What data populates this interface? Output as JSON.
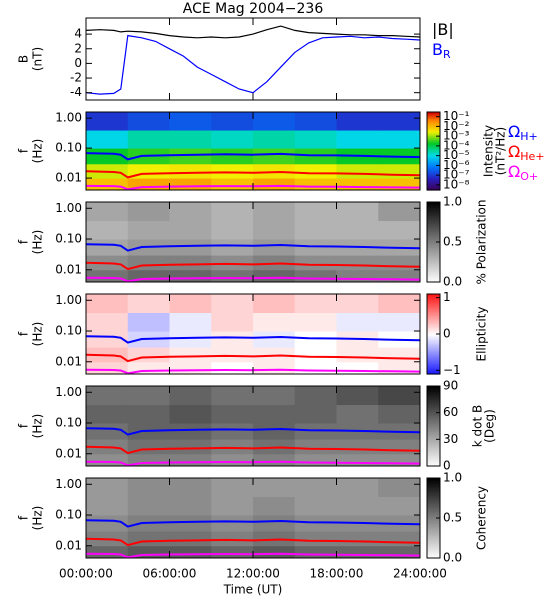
{
  "chart_data": [
    {
      "type": "line",
      "title": "ACE Mag 2004−236",
      "ylabel": "B",
      "yunit": "(nT)",
      "xlim": [
        0,
        24
      ],
      "ylim": [
        -5,
        6.2
      ],
      "yticks": [
        -4,
        -2,
        0,
        2,
        4
      ],
      "legend": true,
      "x": [
        0,
        1,
        2,
        2.5,
        3,
        4,
        5,
        6,
        7,
        8,
        9,
        10,
        11,
        12,
        13,
        14,
        15,
        16,
        17,
        18,
        19,
        20,
        21,
        22,
        23,
        24
      ],
      "series": [
        {
          "name": "|B|",
          "color": "#000000",
          "values": [
            4.5,
            4.6,
            4.5,
            4.3,
            4.4,
            4.3,
            4.1,
            3.8,
            3.6,
            3.5,
            3.6,
            3.5,
            3.6,
            4.0,
            4.6,
            5.1,
            4.5,
            4.2,
            4.1,
            4.0,
            3.9,
            3.9,
            3.8,
            3.8,
            3.7,
            3.6
          ]
        },
        {
          "name": "B",
          "subscript": "R",
          "color": "#0000ff",
          "values": [
            -4.0,
            -4.2,
            -4.1,
            -3.5,
            3.8,
            3.5,
            3.0,
            2.0,
            1.0,
            -0.5,
            -1.5,
            -2.5,
            -3.5,
            -4.0,
            -2.5,
            -0.5,
            1.5,
            2.8,
            3.5,
            3.6,
            3.7,
            3.5,
            3.6,
            3.4,
            3.3,
            3.2
          ]
        }
      ]
    },
    {
      "type": "spectrogram",
      "ylabel": "f",
      "yunit": "(Hz)",
      "ylog": true,
      "xlim": [
        0,
        24
      ],
      "ylim": [
        0.004,
        1.6
      ],
      "yticks": [
        {
          "value": 1,
          "label": "1.00"
        },
        {
          "value": 0.1,
          "label": "0.10"
        },
        {
          "value": 0.01,
          "label": "0.01"
        }
      ],
      "zlabel": "Intensity",
      "zunit": "(nT²/Hz)",
      "zlog": true,
      "colormap": "rainbow",
      "zlim": [
        3e-09,
        0.3
      ],
      "zticks": [
        {
          "value": 0.1,
          "label": "10⁻¹"
        },
        {
          "value": 0.01,
          "label": "10⁻²"
        },
        {
          "value": 0.001,
          "label": "10⁻³"
        },
        {
          "value": 0.0001,
          "label": "10⁻⁴"
        },
        {
          "value": 1e-05,
          "label": "10⁻⁵"
        },
        {
          "value": 1e-06,
          "label": "10⁻⁶"
        },
        {
          "value": 1e-07,
          "label": "10⁻⁷"
        },
        {
          "value": 1e-08,
          "label": "10⁻⁸"
        }
      ],
      "tbins": [
        0,
        3,
        6,
        9,
        12,
        15,
        18,
        21,
        24
      ],
      "fbins": [
        0.004,
        0.01,
        0.03,
        0.1,
        0.4,
        1.6
      ],
      "z": [
        [
          0.01,
          0.02,
          0.02,
          0.01,
          0.02,
          0.01,
          0.01,
          0.01
        ],
        [
          0.002,
          0.003,
          0.004,
          0.003,
          0.004,
          0.003,
          0.002,
          0.002
        ],
        [
          0.0002,
          0.0003,
          0.0004,
          0.0003,
          0.0004,
          0.0003,
          0.0002,
          0.0002
        ],
        [
          1e-05,
          3e-05,
          3e-05,
          2e-05,
          3e-05,
          2e-05,
          1e-05,
          1e-05
        ],
        [
          1e-07,
          2e-07,
          3e-07,
          2e-07,
          3e-07,
          2e-07,
          1e-07,
          1e-07
        ]
      ],
      "legend": true,
      "x": [
        0,
        2,
        2.5,
        3,
        4,
        6,
        8,
        10,
        12,
        14,
        16,
        18,
        20,
        22,
        24
      ],
      "series": [
        {
          "name": "Ω",
          "subscript": "H+",
          "color": "#0000ff",
          "values": [
            0.068,
            0.065,
            0.06,
            0.042,
            0.055,
            0.058,
            0.06,
            0.062,
            0.06,
            0.064,
            0.058,
            0.057,
            0.055,
            0.052,
            0.05
          ]
        },
        {
          "name": "Ω",
          "subscript": "He+",
          "color": "#ff0000",
          "values": [
            0.017,
            0.016,
            0.015,
            0.0105,
            0.0138,
            0.0145,
            0.015,
            0.0155,
            0.015,
            0.016,
            0.0145,
            0.0143,
            0.0138,
            0.013,
            0.0125
          ]
        },
        {
          "name": "Ω",
          "subscript": "O+",
          "color": "#ff00ff",
          "values": [
            0.0055,
            0.0054,
            0.0052,
            0.0042,
            0.005,
            0.0052,
            0.0053,
            0.0054,
            0.0053,
            0.0055,
            0.0052,
            0.0051,
            0.005,
            0.0049,
            0.0048
          ]
        }
      ]
    },
    {
      "type": "spectrogram",
      "ylabel": "f",
      "yunit": "(Hz)",
      "ylog": true,
      "xlim": [
        0,
        24
      ],
      "ylim": [
        0.004,
        1.6
      ],
      "yticks": [
        {
          "value": 1,
          "label": "1.00"
        },
        {
          "value": 0.1,
          "label": "0.10"
        },
        {
          "value": 0.01,
          "label": "0.01"
        }
      ],
      "zlabel": "% Polarization",
      "colormap": "gray_r",
      "zlim": [
        0,
        1
      ],
      "zticks": [
        {
          "value": 0,
          "label": "0.0"
        },
        0.5,
        {
          "value": 1,
          "label": "1.0"
        }
      ],
      "tbins": [
        0,
        3,
        6,
        9,
        12,
        15,
        18,
        21,
        24
      ],
      "fbins": [
        0.004,
        0.01,
        0.03,
        0.1,
        0.4,
        1.6
      ],
      "z": [
        [
          0.55,
          0.6,
          0.6,
          0.55,
          0.6,
          0.55,
          0.5,
          0.5
        ],
        [
          0.45,
          0.5,
          0.5,
          0.45,
          0.5,
          0.45,
          0.45,
          0.45
        ],
        [
          0.35,
          0.4,
          0.4,
          0.35,
          0.4,
          0.35,
          0.35,
          0.35
        ],
        [
          0.3,
          0.35,
          0.35,
          0.3,
          0.35,
          0.3,
          0.3,
          0.3
        ],
        [
          0.35,
          0.4,
          0.35,
          0.3,
          0.35,
          0.3,
          0.3,
          0.4
        ]
      ],
      "x": [
        0,
        2,
        2.5,
        3,
        4,
        6,
        8,
        10,
        12,
        14,
        16,
        18,
        20,
        22,
        24
      ],
      "series": [
        {
          "color": "#0000ff",
          "values": [
            0.068,
            0.065,
            0.06,
            0.042,
            0.055,
            0.058,
            0.06,
            0.062,
            0.06,
            0.064,
            0.058,
            0.057,
            0.055,
            0.052,
            0.05
          ]
        },
        {
          "color": "#ff0000",
          "values": [
            0.017,
            0.016,
            0.015,
            0.0105,
            0.0138,
            0.0145,
            0.015,
            0.0155,
            0.015,
            0.016,
            0.0145,
            0.0143,
            0.0138,
            0.013,
            0.0125
          ]
        },
        {
          "color": "#ff00ff",
          "values": [
            0.0055,
            0.0054,
            0.0052,
            0.0042,
            0.005,
            0.0052,
            0.0053,
            0.0054,
            0.0053,
            0.0055,
            0.0052,
            0.0051,
            0.005,
            0.0049,
            0.0048
          ]
        }
      ]
    },
    {
      "type": "spectrogram",
      "ylabel": "f",
      "yunit": "(Hz)",
      "ylog": true,
      "xlim": [
        0,
        24
      ],
      "ylim": [
        0.004,
        1.6
      ],
      "yticks": [
        {
          "value": 1,
          "label": "1.00"
        },
        {
          "value": 0.1,
          "label": "0.10"
        },
        {
          "value": 0.01,
          "label": "0.01"
        }
      ],
      "zlabel": "Ellipticity",
      "colormap": "bwr",
      "zlim": [
        -1.1,
        1.1
      ],
      "zticks": [
        {
          "value": -1,
          "label": "−1"
        },
        0,
        1
      ],
      "tbins": [
        0,
        3,
        6,
        9,
        12,
        15,
        18,
        21,
        24
      ],
      "fbins": [
        0.004,
        0.01,
        0.03,
        0.1,
        0.4,
        1.6
      ],
      "z": [
        [
          0.2,
          0.1,
          0.1,
          0.0,
          0.1,
          0.0,
          0.0,
          0.1
        ],
        [
          0.3,
          0.2,
          0.1,
          0.1,
          0.1,
          0.0,
          0.1,
          0.1
        ],
        [
          0.2,
          -0.2,
          -0.1,
          0.1,
          -0.1,
          0.0,
          0.1,
          0.0
        ],
        [
          0.2,
          -0.3,
          -0.1,
          0.2,
          0.1,
          0.1,
          -0.1,
          -0.1
        ],
        [
          0.3,
          0.2,
          0.3,
          0.2,
          0.3,
          0.2,
          0.2,
          0.3
        ]
      ],
      "x": [
        0,
        2,
        2.5,
        3,
        4,
        6,
        8,
        10,
        12,
        14,
        16,
        18,
        20,
        22,
        24
      ],
      "series": [
        {
          "color": "#0000ff",
          "values": [
            0.068,
            0.065,
            0.06,
            0.042,
            0.055,
            0.058,
            0.06,
            0.062,
            0.06,
            0.064,
            0.058,
            0.057,
            0.055,
            0.052,
            0.05
          ]
        },
        {
          "color": "#ff0000",
          "values": [
            0.017,
            0.016,
            0.015,
            0.0105,
            0.0138,
            0.0145,
            0.015,
            0.0155,
            0.015,
            0.016,
            0.0145,
            0.0143,
            0.0138,
            0.013,
            0.0125
          ]
        },
        {
          "color": "#ff00ff",
          "values": [
            0.0055,
            0.0054,
            0.0052,
            0.0042,
            0.005,
            0.0052,
            0.0053,
            0.0054,
            0.0053,
            0.0055,
            0.0052,
            0.0051,
            0.005,
            0.0049,
            0.0048
          ]
        }
      ]
    },
    {
      "type": "spectrogram",
      "ylabel": "f",
      "yunit": "(Hz)",
      "ylog": true,
      "xlim": [
        0,
        24
      ],
      "ylim": [
        0.004,
        1.6
      ],
      "yticks": [
        {
          "value": 1,
          "label": "1.00"
        },
        {
          "value": 0.1,
          "label": "0.10"
        },
        {
          "value": 0.01,
          "label": "0.01"
        }
      ],
      "zlabel": "k dot B",
      "zunit": "(Deg)",
      "colormap": "gray_r",
      "zlim": [
        0,
        90
      ],
      "zticks": [
        0,
        30,
        60,
        90
      ],
      "tbins": [
        0,
        3,
        6,
        9,
        12,
        15,
        18,
        21,
        24
      ],
      "fbins": [
        0.004,
        0.01,
        0.03,
        0.1,
        0.4,
        1.6
      ],
      "z": [
        [
          40,
          45,
          45,
          40,
          45,
          40,
          40,
          40
        ],
        [
          45,
          50,
          50,
          45,
          50,
          45,
          45,
          45
        ],
        [
          50,
          55,
          55,
          50,
          55,
          50,
          50,
          50
        ],
        [
          55,
          55,
          60,
          55,
          55,
          55,
          50,
          55
        ],
        [
          50,
          50,
          55,
          50,
          50,
          55,
          60,
          65
        ]
      ],
      "x": [
        0,
        2,
        2.5,
        3,
        4,
        6,
        8,
        10,
        12,
        14,
        16,
        18,
        20,
        22,
        24
      ],
      "series": [
        {
          "color": "#0000ff",
          "values": [
            0.068,
            0.065,
            0.06,
            0.042,
            0.055,
            0.058,
            0.06,
            0.062,
            0.06,
            0.064,
            0.058,
            0.057,
            0.055,
            0.052,
            0.05
          ]
        },
        {
          "color": "#ff0000",
          "values": [
            0.017,
            0.016,
            0.015,
            0.0105,
            0.0138,
            0.0145,
            0.015,
            0.0155,
            0.015,
            0.016,
            0.0145,
            0.0143,
            0.0138,
            0.013,
            0.0125
          ]
        },
        {
          "color": "#ff00ff",
          "values": [
            0.0055,
            0.0054,
            0.0052,
            0.0042,
            0.005,
            0.0052,
            0.0053,
            0.0054,
            0.0053,
            0.0055,
            0.0052,
            0.0051,
            0.005,
            0.0049,
            0.0048
          ]
        }
      ]
    },
    {
      "type": "spectrogram",
      "ylabel": "f",
      "yunit": "(Hz)",
      "ylog": true,
      "xlim": [
        0,
        24
      ],
      "ylim": [
        0.004,
        1.6
      ],
      "yticks": [
        {
          "value": 1,
          "label": "1.00"
        },
        {
          "value": 0.1,
          "label": "0.10"
        },
        {
          "value": 0.01,
          "label": "0.01"
        }
      ],
      "zlabel": "Coherency",
      "colormap": "gray_r",
      "zlim": [
        0,
        1
      ],
      "zticks": [
        {
          "value": 0,
          "label": "0.0"
        },
        0.5,
        {
          "value": 1,
          "label": "1.0"
        }
      ],
      "tbins": [
        0,
        3,
        6,
        9,
        12,
        15,
        18,
        21,
        24
      ],
      "fbins": [
        0.004,
        0.01,
        0.03,
        0.1,
        0.4,
        1.6
      ],
      "z": [
        [
          0.6,
          0.65,
          0.65,
          0.6,
          0.65,
          0.6,
          0.6,
          0.6
        ],
        [
          0.5,
          0.55,
          0.55,
          0.5,
          0.55,
          0.5,
          0.5,
          0.5
        ],
        [
          0.45,
          0.5,
          0.5,
          0.45,
          0.5,
          0.45,
          0.45,
          0.45
        ],
        [
          0.4,
          0.45,
          0.45,
          0.4,
          0.45,
          0.4,
          0.4,
          0.4
        ],
        [
          0.4,
          0.45,
          0.45,
          0.4,
          0.4,
          0.4,
          0.4,
          0.45
        ]
      ],
      "x": [
        0,
        2,
        2.5,
        3,
        4,
        6,
        8,
        10,
        12,
        14,
        16,
        18,
        20,
        22,
        24
      ],
      "series": [
        {
          "color": "#0000ff",
          "values": [
            0.068,
            0.065,
            0.06,
            0.042,
            0.055,
            0.058,
            0.06,
            0.062,
            0.06,
            0.064,
            0.058,
            0.057,
            0.055,
            0.052,
            0.05
          ]
        },
        {
          "color": "#ff0000",
          "values": [
            0.017,
            0.016,
            0.015,
            0.0105,
            0.0138,
            0.0145,
            0.015,
            0.0155,
            0.015,
            0.016,
            0.0145,
            0.0143,
            0.0138,
            0.013,
            0.0125
          ]
        },
        {
          "color": "#ff00ff",
          "values": [
            0.0055,
            0.0054,
            0.0052,
            0.0042,
            0.005,
            0.0052,
            0.0053,
            0.0054,
            0.0053,
            0.0055,
            0.0052,
            0.0051,
            0.005,
            0.0049,
            0.0048
          ]
        }
      ],
      "xlabel": "Time (UT)",
      "xticks": [
        {
          "value": 0,
          "label": "00:00:00"
        },
        {
          "value": 6,
          "label": "06:00:00"
        },
        {
          "value": 12,
          "label": "12:00:00"
        },
        {
          "value": 18,
          "label": "18:00:00"
        },
        {
          "value": 24,
          "label": "24:00:00"
        }
      ]
    }
  ]
}
